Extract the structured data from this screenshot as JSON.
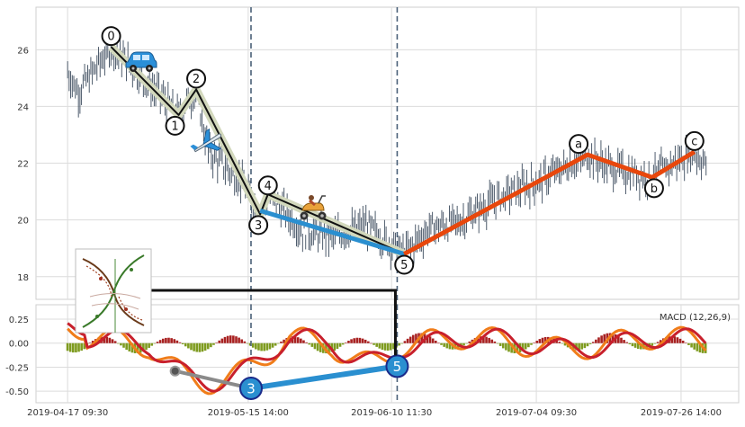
{
  "chart_data": [
    {
      "type": "line",
      "subtype": "candlestick-with-elliott-wave",
      "x_ticks": [
        "2019-04-17 09:30",
        "2019-05-15 14:00",
        "2019-06-10 11:30",
        "2019-07-04 09:30",
        "2019-07-26 14:00"
      ],
      "y_ticks": [
        18,
        20,
        22,
        24,
        26
      ],
      "ylim": [
        17.2,
        27.5
      ],
      "grid": true,
      "colors": {
        "price": "#3b4a5c",
        "impulse": "#111111",
        "impulse_halo": "#d2d8bc",
        "wave3_5": "#2a8fd0",
        "correction": "#e8470c",
        "marker_stroke": "#111111",
        "vline": "#4a6078"
      },
      "wave_labels": [
        {
          "label": "0",
          "t": 0.107,
          "y": 26.1
        },
        {
          "label": "1",
          "t": 0.203,
          "y": 23.7
        },
        {
          "label": "2",
          "t": 0.228,
          "y": 24.6
        },
        {
          "label": "3",
          "t": 0.319,
          "y": 20.2
        },
        {
          "label": "4",
          "t": 0.33,
          "y": 20.9
        },
        {
          "label": "5",
          "t": 0.524,
          "y": 18.8
        },
        {
          "label": "a",
          "t": 0.785,
          "y": 22.3
        },
        {
          "label": "b",
          "t": 0.877,
          "y": 21.5
        },
        {
          "label": "c",
          "t": 0.937,
          "y": 22.4
        }
      ],
      "vertical_lines_t": [
        0.306,
        0.514
      ],
      "icons": [
        "car-icon",
        "airplane-icon",
        "scooter-icon"
      ]
    },
    {
      "type": "bar",
      "subtype": "macd",
      "label": "MACD (12,26,9)",
      "y_ticks": [
        "0.25",
        "0.00",
        "-0.25",
        "-0.50"
      ],
      "ylim": [
        -0.62,
        0.4
      ],
      "colors": {
        "macd": "#f07d1a",
        "signal": "#c8202c",
        "hist_pos": "#a82121",
        "hist_neg": "#7e9b1f",
        "bridge": "#2a8fd0",
        "gray": "#8a8a8a"
      },
      "markers": [
        {
          "label": "3",
          "t": 0.306,
          "y": -0.47
        },
        {
          "label": "5",
          "t": 0.514,
          "y": -0.24
        }
      ],
      "gray_marker": {
        "t": 0.198,
        "y": -0.29
      }
    }
  ]
}
